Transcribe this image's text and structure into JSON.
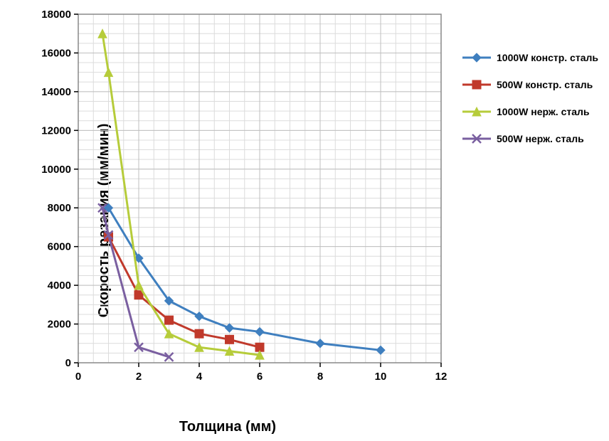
{
  "chart": {
    "type": "line",
    "xlabel": "Толщина (мм)",
    "ylabel": "Скорость резания (мм/мин)",
    "label_fontsize": 20,
    "tick_fontsize": 15,
    "background_color": "#ffffff",
    "grid_color_minor": "#dcdcdc",
    "grid_color_major": "#bfbfbf",
    "border_color": "#888888",
    "xlim": [
      0,
      12
    ],
    "ylim": [
      0,
      18000
    ],
    "xticks": [
      0,
      2,
      4,
      6,
      8,
      10,
      12
    ],
    "yticks": [
      0,
      2000,
      4000,
      6000,
      8000,
      10000,
      12000,
      14000,
      16000,
      18000
    ],
    "x_minor_subdiv": 4,
    "y_minor_subdiv": 4,
    "line_width": 3,
    "marker_size": 6,
    "series": [
      {
        "id": "s1",
        "label": "1000W констр. сталь",
        "color": "#3f7fbf",
        "marker": "diamond",
        "x": [
          1,
          2,
          3,
          4,
          5,
          6,
          8,
          10
        ],
        "y": [
          8000,
          5400,
          3200,
          2400,
          1800,
          1600,
          1000,
          650
        ]
      },
      {
        "id": "s2",
        "label": "500W констр. сталь",
        "color": "#c0392b",
        "marker": "square",
        "x": [
          1,
          2,
          3,
          4,
          5,
          6
        ],
        "y": [
          6500,
          3500,
          2200,
          1500,
          1200,
          800
        ]
      },
      {
        "id": "s3",
        "label": "1000W нерж. сталь",
        "color": "#b6cc3a",
        "marker": "triangle",
        "x": [
          0.8,
          1,
          2,
          3,
          4,
          5,
          6
        ],
        "y": [
          17000,
          15000,
          4000,
          1500,
          800,
          600,
          400
        ]
      },
      {
        "id": "s4",
        "label": "500W нерж. сталь",
        "color": "#7a5fa0",
        "marker": "x",
        "x": [
          0.8,
          1,
          2,
          3
        ],
        "y": [
          8000,
          6600,
          800,
          300
        ]
      }
    ]
  },
  "legend": {
    "s1": "1000W констр. сталь",
    "s2": "500W констр. сталь",
    "s3": "1000W нерж. сталь",
    "s4": "500W нерж. сталь"
  }
}
